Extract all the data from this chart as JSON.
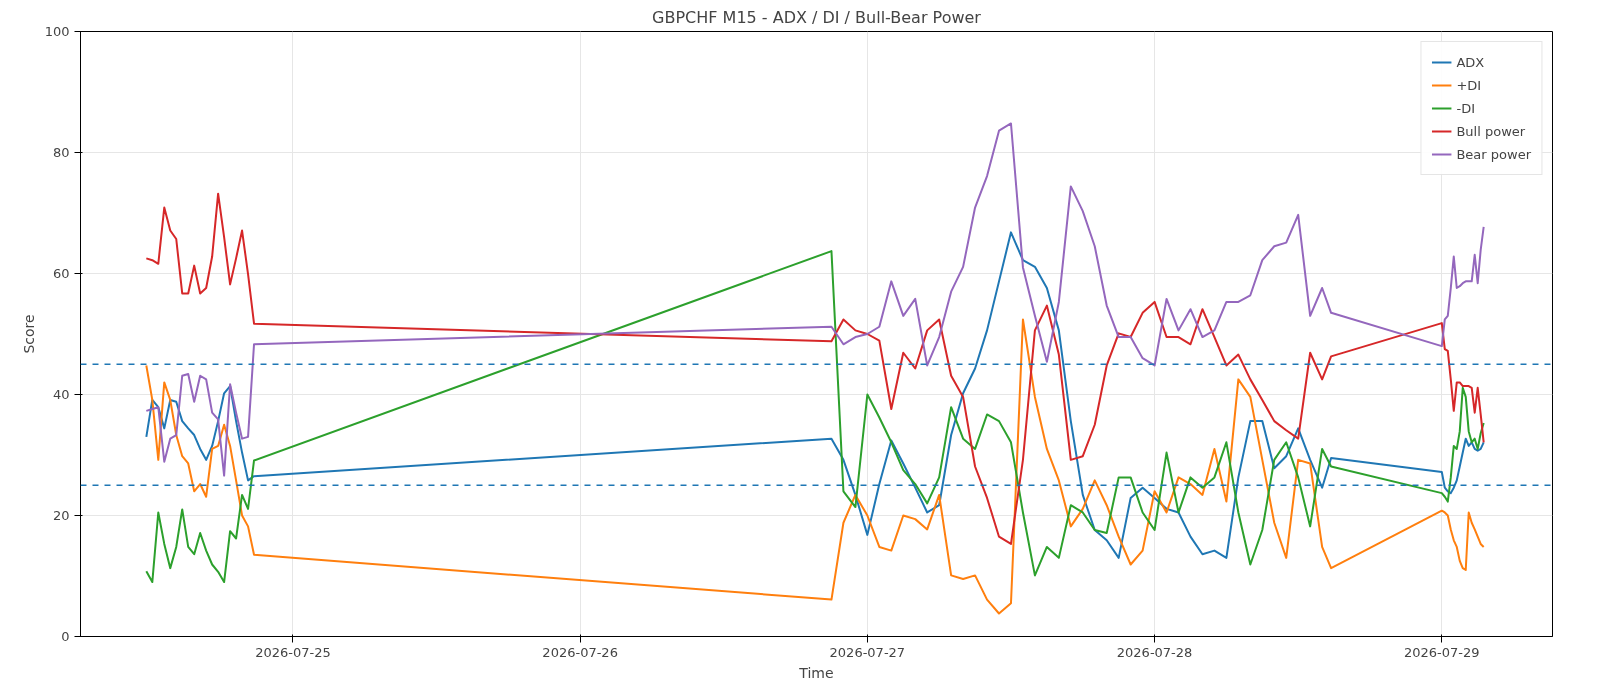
{
  "chart_data": {
    "type": "line",
    "title": "GBPCHF M15 - ADX / DI / Bull-Bear Power",
    "xlabel": "Time",
    "ylabel": "Score",
    "x": [
      "2026-07-24T11:45",
      "2026-07-24T12:15",
      "2026-07-24T12:45",
      "2026-07-24T13:15",
      "2026-07-24T13:45",
      "2026-07-24T14:15",
      "2026-07-24T14:45",
      "2026-07-24T15:15",
      "2026-07-24T15:45",
      "2026-07-24T16:15",
      "2026-07-24T16:45",
      "2026-07-24T17:15",
      "2026-07-24T17:45",
      "2026-07-24T18:15",
      "2026-07-24T18:45",
      "2026-07-24T19:15",
      "2026-07-24T19:45",
      "2026-07-24T20:15",
      "2026-07-24T20:45",
      "2026-07-26T21:00",
      "2026-07-26T22:00",
      "2026-07-26T23:00",
      "2026-07-27T00:00",
      "2026-07-27T01:00",
      "2026-07-27T02:00",
      "2026-07-27T03:00",
      "2026-07-27T04:00",
      "2026-07-27T05:00",
      "2026-07-27T06:00",
      "2026-07-27T07:00",
      "2026-07-27T08:00",
      "2026-07-27T09:00",
      "2026-07-27T10:00",
      "2026-07-27T11:00",
      "2026-07-27T12:00",
      "2026-07-27T13:00",
      "2026-07-27T14:00",
      "2026-07-27T15:00",
      "2026-07-27T16:00",
      "2026-07-27T17:00",
      "2026-07-27T18:00",
      "2026-07-27T19:00",
      "2026-07-27T20:00",
      "2026-07-27T21:00",
      "2026-07-27T22:00",
      "2026-07-27T23:00",
      "2026-07-28T00:00",
      "2026-07-28T01:00",
      "2026-07-28T02:00",
      "2026-07-28T03:00",
      "2026-07-28T04:00",
      "2026-07-28T05:00",
      "2026-07-28T06:00",
      "2026-07-28T07:00",
      "2026-07-28T08:00",
      "2026-07-28T09:00",
      "2026-07-28T10:00",
      "2026-07-28T11:00",
      "2026-07-28T12:00",
      "2026-07-28T13:00",
      "2026-07-28T14:00",
      "2026-07-28T14:45",
      "2026-07-29T00:00",
      "2026-07-29T00:15",
      "2026-07-29T00:30",
      "2026-07-29T00:45",
      "2026-07-29T01:00",
      "2026-07-29T01:15",
      "2026-07-29T01:30",
      "2026-07-29T01:45",
      "2026-07-29T02:00",
      "2026-07-29T02:15",
      "2026-07-29T02:30",
      "2026-07-29T02:45",
      "2026-07-29T03:00",
      "2026-07-29T03:15",
      "2026-07-29T03:30"
    ],
    "series": [
      {
        "name": "ADX",
        "color": "#1f77b4",
        "values": [
          33.0,
          39.1,
          37.9,
          34.4,
          39.1,
          38.8,
          35.6,
          34.4,
          33.3,
          31.0,
          29.2,
          31.5,
          35.6,
          40.2,
          41.4,
          35.6,
          30.4,
          25.8,
          26.5,
          32.7,
          29.2,
          23.4,
          16.8,
          25.2,
          32.4,
          28.6,
          24.6,
          20.5,
          21.7,
          33.3,
          40.2,
          44.3,
          50.6,
          58.7,
          66.8,
          62.2,
          61.1,
          57.6,
          50.6,
          35.6,
          23.4,
          17.6,
          15.9,
          13.0,
          22.9,
          24.6,
          22.9,
          21.1,
          20.5,
          16.5,
          13.6,
          14.2,
          13.0,
          26.3,
          35.6,
          35.6,
          27.8,
          29.8,
          34.4,
          29.2,
          24.6,
          29.5,
          27.2,
          24.6,
          24.0,
          23.7,
          24.6,
          25.8,
          28.1,
          30.4,
          32.7,
          31.5,
          32.1,
          31.0,
          30.7,
          31.0,
          32.1
        ]
      },
      {
        "name": "+DI",
        "color": "#ff7f0e",
        "values": [
          44.8,
          39.1,
          29.2,
          42.0,
          39.1,
          33.3,
          29.8,
          28.6,
          24.0,
          25.2,
          23.1,
          31.0,
          31.5,
          35.0,
          31.5,
          25.8,
          20.0,
          18.2,
          13.5,
          6.1,
          18.8,
          23.4,
          20.0,
          14.8,
          14.2,
          20.0,
          19.4,
          17.7,
          23.4,
          10.1,
          9.5,
          10.1,
          6.1,
          3.8,
          5.5,
          52.4,
          39.6,
          31.0,
          25.8,
          18.2,
          21.1,
          25.8,
          21.7,
          16.5,
          11.9,
          14.2,
          24.0,
          20.5,
          26.3,
          25.2,
          23.4,
          31.0,
          22.3,
          42.5,
          39.6,
          29.2,
          18.8,
          13.0,
          29.2,
          28.6,
          14.8,
          11.3,
          20.8,
          20.5,
          20.0,
          17.7,
          15.9,
          14.8,
          12.5,
          11.3,
          11.0,
          20.5,
          18.8,
          17.7,
          16.5,
          15.3,
          14.8
        ]
      },
      {
        "name": "-DI",
        "color": "#2ca02c",
        "values": [
          10.8,
          9.0,
          20.5,
          15.3,
          11.3,
          14.8,
          21.0,
          14.8,
          13.6,
          17.1,
          14.2,
          11.9,
          10.7,
          9.0,
          17.4,
          16.2,
          23.4,
          21.1,
          29.1,
          63.7,
          24.0,
          21.4,
          40.0,
          36.2,
          32.1,
          27.5,
          25.2,
          22.0,
          26.3,
          37.9,
          32.7,
          31.0,
          36.7,
          35.6,
          32.1,
          20.5,
          10.1,
          14.8,
          13.0,
          21.7,
          20.5,
          17.6,
          17.1,
          26.3,
          26.3,
          20.5,
          17.6,
          30.4,
          20.5,
          26.3,
          24.6,
          26.3,
          32.1,
          20.5,
          11.9,
          17.6,
          29.2,
          32.1,
          26.3,
          18.2,
          31.0,
          28.1,
          23.7,
          23.1,
          22.3,
          26.3,
          31.5,
          31.0,
          33.9,
          41.1,
          39.6,
          33.9,
          32.1,
          32.7,
          31.0,
          33.6,
          35.3
        ]
      },
      {
        "name": "Bull power",
        "color": "#d62728",
        "values": [
          62.5,
          62.2,
          61.6,
          70.9,
          67.1,
          65.7,
          56.7,
          56.7,
          61.3,
          56.7,
          57.6,
          62.8,
          73.2,
          66.0,
          58.2,
          62.5,
          67.1,
          59.9,
          51.7,
          48.8,
          52.4,
          50.6,
          50.0,
          48.9,
          37.6,
          46.9,
          44.3,
          50.6,
          52.4,
          43.1,
          39.6,
          28.1,
          22.9,
          16.5,
          15.3,
          29.2,
          50.6,
          54.7,
          46.6,
          29.2,
          29.8,
          35.0,
          44.8,
          50.1,
          49.5,
          53.5,
          55.3,
          49.5,
          49.5,
          48.3,
          54.1,
          49.5,
          44.8,
          46.6,
          42.5,
          39.1,
          35.6,
          34.1,
          32.7,
          46.9,
          42.5,
          46.3,
          51.8,
          47.5,
          47.2,
          42.5,
          37.3,
          42.0,
          42.0,
          41.4,
          41.4,
          41.4,
          41.1,
          37.0,
          41.1,
          36.7,
          32.1
        ]
      },
      {
        "name": "Bear power",
        "color": "#9467bd",
        "values": [
          37.3,
          37.6,
          37.9,
          28.9,
          32.7,
          33.3,
          43.1,
          43.4,
          38.8,
          43.1,
          42.5,
          37.0,
          35.9,
          26.6,
          41.7,
          37.0,
          32.7,
          33.0,
          48.3,
          51.2,
          48.3,
          49.5,
          50.0,
          51.2,
          58.7,
          53.0,
          55.8,
          44.8,
          49.5,
          57.0,
          61.1,
          70.9,
          76.1,
          83.6,
          84.8,
          61.0,
          53.0,
          45.4,
          55.3,
          74.4,
          70.3,
          64.5,
          54.7,
          49.5,
          49.5,
          46.0,
          44.8,
          55.8,
          50.6,
          54.1,
          49.5,
          50.6,
          55.3,
          55.3,
          56.4,
          62.2,
          64.5,
          65.1,
          69.7,
          53.0,
          57.6,
          53.5,
          48.0,
          52.4,
          53.0,
          57.6,
          62.8,
          57.6,
          57.9,
          58.4,
          58.7,
          58.7,
          58.7,
          63.1,
          58.4,
          63.9,
          67.7
        ]
      }
    ],
    "xlim": [
      "2026-07-24T06:15",
      "2026-07-29T09:15"
    ],
    "xticks": [
      "2026-07-25",
      "2026-07-26",
      "2026-07-27",
      "2026-07-28",
      "2026-07-29"
    ],
    "ylim": [
      0,
      100
    ],
    "yticks": [
      0,
      20,
      40,
      60,
      80,
      100
    ],
    "ref_lines": [
      {
        "axis": "y",
        "value": 45,
        "color": "#1f77b4",
        "line_style": "dashed"
      },
      {
        "axis": "y",
        "value": 25,
        "color": "#1f77b4",
        "line_style": "dashed"
      }
    ],
    "grid": true,
    "legend": "top right",
    "line_style": "solid"
  }
}
